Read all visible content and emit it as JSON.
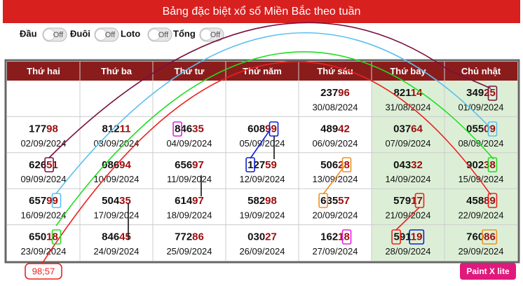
{
  "header": {
    "title": "Bảng đặc biệt xổ số Miền Bắc theo tuần"
  },
  "toggles": [
    {
      "label": "Đầu",
      "state": "Off"
    },
    {
      "label": "Đuôi",
      "state": "Off"
    },
    {
      "label": "Loto",
      "state": "Off"
    },
    {
      "label": "Tổng",
      "state": "Off"
    }
  ],
  "table": {
    "columns": [
      "Thứ hai",
      "Thứ ba",
      "Thứ tư",
      "Thứ năm",
      "Thứ sáu",
      "Thứ bảy",
      "Chủ nhật"
    ],
    "rows": [
      [
        null,
        null,
        null,
        null,
        {
          "head": "237",
          "tail": "96",
          "date": "30/08/2024"
        },
        {
          "head": "821",
          "tail": "14",
          "date": "31/08/2024"
        },
        {
          "head": "349",
          "tail": "25",
          "date": "01/09/2024"
        }
      ],
      [
        {
          "head": "177",
          "tail": "98",
          "date": "02/09/2024"
        },
        {
          "head": "812",
          "tail": "11",
          "date": "03/09/2024"
        },
        {
          "head": "846",
          "tail": "35",
          "date": "04/09/2024"
        },
        {
          "head": "608",
          "tail": "99",
          "date": "05/09/2024"
        },
        {
          "head": "489",
          "tail": "42",
          "date": "06/09/2024"
        },
        {
          "head": "037",
          "tail": "64",
          "date": "07/09/2024"
        },
        {
          "head": "055",
          "tail": "09",
          "date": "08/09/2024"
        }
      ],
      [
        {
          "head": "626",
          "tail": "51",
          "date": "09/09/2024"
        },
        {
          "head": "086",
          "tail": "94",
          "date": "10/09/2024"
        },
        {
          "head": "656",
          "tail": "97",
          "date": "11/09/2024"
        },
        {
          "head": "127",
          "tail": "59",
          "date": "12/09/2024"
        },
        {
          "head": "506",
          "tail": "28",
          "date": "13/09/2024"
        },
        {
          "head": "043",
          "tail": "32",
          "date": "14/09/2024"
        },
        {
          "head": "902",
          "tail": "38",
          "date": "15/09/2024"
        }
      ],
      [
        {
          "head": "657",
          "tail": "99",
          "date": "16/09/2024"
        },
        {
          "head": "504",
          "tail": "35",
          "date": "17/09/2024"
        },
        {
          "head": "614",
          "tail": "97",
          "date": "18/09/2024"
        },
        {
          "head": "582",
          "tail": "98",
          "date": "19/09/2024"
        },
        {
          "head": "635",
          "tail": "57",
          "date": "20/09/2024"
        },
        {
          "head": "579",
          "tail": "17",
          "date": "21/09/2024"
        },
        {
          "head": "458",
          "tail": "89",
          "date": "22/09/2024"
        }
      ],
      [
        {
          "head": "650",
          "tail": "18",
          "date": "23/09/2024"
        },
        {
          "head": "846",
          "tail": "45",
          "date": "24/09/2024"
        },
        {
          "head": "772",
          "tail": "86",
          "date": "25/09/2024"
        },
        {
          "head": "030",
          "tail": "27",
          "date": "26/09/2024"
        },
        {
          "head": "162",
          "tail": "18",
          "date": "27/09/2024"
        },
        {
          "head": "591",
          "tail": "19",
          "date": "28/09/2024"
        },
        {
          "head": "760",
          "tail": "86",
          "date": "29/09/2024"
        }
      ]
    ]
  },
  "annotations": {
    "note": "98;57",
    "badge": "Paint X lite"
  }
}
